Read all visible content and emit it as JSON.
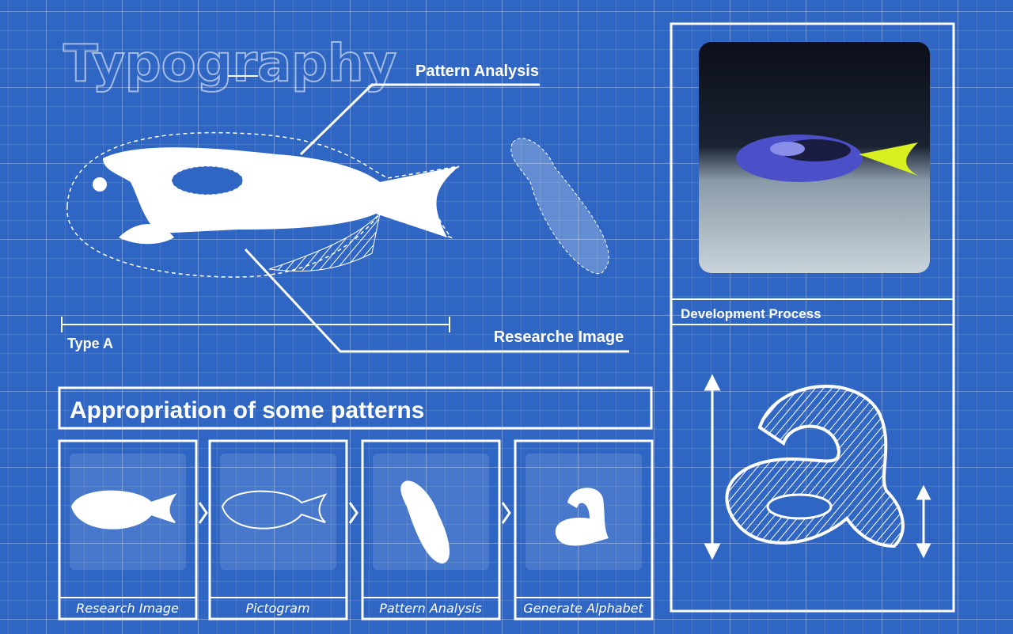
{
  "title": "Typography",
  "callouts": {
    "pattern_analysis": "Pattern Analysis",
    "research_image": "Researche Image",
    "type_label": "Type A"
  },
  "panel": {
    "title": "Development Process"
  },
  "process": {
    "title": "Appropriation of some patterns",
    "steps": [
      "Research Image",
      "Pictogram",
      "Pattern Analysis",
      "Generate Alphabet"
    ]
  }
}
